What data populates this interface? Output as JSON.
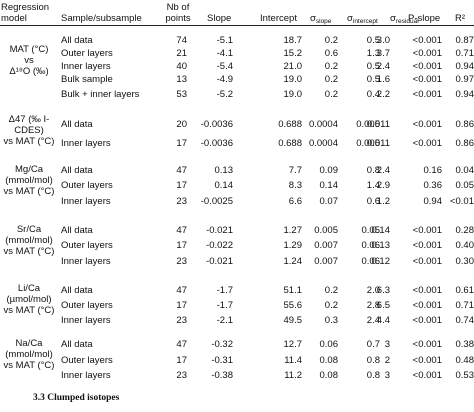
{
  "headers": {
    "model": "Regression\nmodel",
    "sample": "Sample/subsample",
    "n": "Nb of\npoints",
    "slope": "Slope",
    "intercept": "Intercept",
    "sigma_slope_sym": "σ",
    "sigma_slope_sub": "slope",
    "sigma_int_sym": "σ",
    "sigma_int_sub": "intercept",
    "sigma_res_sym": "σ",
    "sigma_res_sub": "residual",
    "p": "P-slope",
    "r2": "R²"
  },
  "groups": [
    {
      "model": "MAT (°C)\nvs\nΔ¹⁸O (‰)",
      "rows": [
        {
          "sample": "All data",
          "n": "74",
          "slope": "-5.1",
          "intercept": "18.7",
          "ss": "0.2",
          "si": "0.5",
          "sr": "3.0",
          "p": "<0.001",
          "r2": "0.87"
        },
        {
          "sample": "Outer layers",
          "n": "21",
          "slope": "-4.1",
          "intercept": "15.2",
          "ss": "0.6",
          "si": "1.3",
          "sr": "3.7",
          "p": "<0.001",
          "r2": "0.71"
        },
        {
          "sample": "Inner layers",
          "n": "40",
          "slope": "-5.4",
          "intercept": "21.0",
          "ss": "0.2",
          "si": "0.5",
          "sr": "2.4",
          "p": "<0.001",
          "r2": "0.94"
        },
        {
          "sample": "Bulk sample",
          "n": "13",
          "slope": "-4.9",
          "intercept": "19.0",
          "ss": "0.2",
          "si": "0.5",
          "sr": "1.6",
          "p": "<0.001",
          "r2": "0.97"
        },
        {
          "sample": "Bulk + inner layers",
          "n": "53",
          "slope": "-5.2",
          "intercept": "19.0",
          "ss": "0.2",
          "si": "0.4",
          "sr": "2.2",
          "p": "<0.001",
          "r2": "0.94"
        }
      ]
    },
    {
      "model": "Δ47 (‰ I-\nCDES)\nvs MAT (°C)",
      "rows": [
        {
          "sample": "All data",
          "n": "20",
          "slope": "-0.0036",
          "intercept": "0.688",
          "ss": "0.0004",
          "si": "0.005",
          "sr": "0.011",
          "p": "<0.001",
          "r2": "0.86"
        },
        {
          "sample": "Inner layers",
          "n": "17",
          "slope": "-0.0036",
          "intercept": "0.688",
          "ss": "0.0004",
          "si": "0.005",
          "sr": "0.011",
          "p": "<0.001",
          "r2": "0.86"
        }
      ]
    },
    {
      "model": "Mg/Ca\n(mmol/mol)\nvs MAT (°C)",
      "rows": [
        {
          "sample": "All data",
          "n": "47",
          "slope": "0.13",
          "intercept": "7.7",
          "ss": "0.09",
          "si": "0.8",
          "sr": "2.4",
          "p": "0.16",
          "r2": "0.04"
        },
        {
          "sample": "Outer layers",
          "n": "17",
          "slope": "0.14",
          "intercept": "8.3",
          "ss": "0.14",
          "si": "1.4",
          "sr": "2.9",
          "p": "0.36",
          "r2": "0.05"
        },
        {
          "sample": "Inner layers",
          "n": "23",
          "slope": "-0.0025",
          "intercept": "6.6",
          "ss": "0.07",
          "si": "0.6",
          "sr": "1.2",
          "p": "0.94",
          "r2": "<0.01"
        }
      ]
    },
    {
      "model": "Sr/Ca\n(mmol/mol)\nvs MAT (°C)",
      "rows": [
        {
          "sample": "All data",
          "n": "47",
          "slope": "-0.021",
          "intercept": "1.27",
          "ss": "0.005",
          "si": "0.05",
          "sr": "0.14",
          "p": "<0.001",
          "r2": "0.28"
        },
        {
          "sample": "Outer layers",
          "n": "17",
          "slope": "-0.022",
          "intercept": "1.29",
          "ss": "0.007",
          "si": "0.06",
          "sr": "0.13",
          "p": "<0.001",
          "r2": "0.40"
        },
        {
          "sample": "Inner layers",
          "n": "23",
          "slope": "-0.021",
          "intercept": "1.24",
          "ss": "0.007",
          "si": "0.06",
          "sr": "0.12",
          "p": "<0.001",
          "r2": "0.30"
        }
      ]
    },
    {
      "model": "Li/Ca\n(µmol/mol)\nvs MAT (°C)",
      "rows": [
        {
          "sample": "All data",
          "n": "47",
          "slope": "-1.7",
          "intercept": "51.1",
          "ss": "0.2",
          "si": "2.0",
          "sr": "6.3",
          "p": "<0.001",
          "r2": "0.61"
        },
        {
          "sample": "Outer layers",
          "n": "17",
          "slope": "-1.7",
          "intercept": "55.6",
          "ss": "0.2",
          "si": "2.8",
          "sr": "6.5",
          "p": "<0.001",
          "r2": "0.71"
        },
        {
          "sample": "Inner layers",
          "n": "23",
          "slope": "-2.1",
          "intercept": "49.5",
          "ss": "0.3",
          "si": "2.4",
          "sr": "4.4",
          "p": "<0.001",
          "r2": "0.74"
        }
      ]
    },
    {
      "model": "Na/Ca\n(mmol/mol)\nvs MAT (°C)",
      "rows": [
        {
          "sample": "All data",
          "n": "47",
          "slope": "-0.32",
          "intercept": "12.7",
          "ss": "0.06",
          "si": "0.7",
          "sr": "3",
          "p": "<0.001",
          "r2": "0.38"
        },
        {
          "sample": "Outer layers",
          "n": "17",
          "slope": "-0.31",
          "intercept": "11.4",
          "ss": "0.08",
          "si": "0.8",
          "sr": "2",
          "p": "<0.001",
          "r2": "0.48"
        },
        {
          "sample": "Inner layers",
          "n": "23",
          "slope": "-0.38",
          "intercept": "11.2",
          "ss": "0.08",
          "si": "0.8",
          "sr": "3",
          "p": "<0.001",
          "r2": "0.53"
        }
      ]
    }
  ],
  "section_heading": "3.3 Clumped isotopes"
}
